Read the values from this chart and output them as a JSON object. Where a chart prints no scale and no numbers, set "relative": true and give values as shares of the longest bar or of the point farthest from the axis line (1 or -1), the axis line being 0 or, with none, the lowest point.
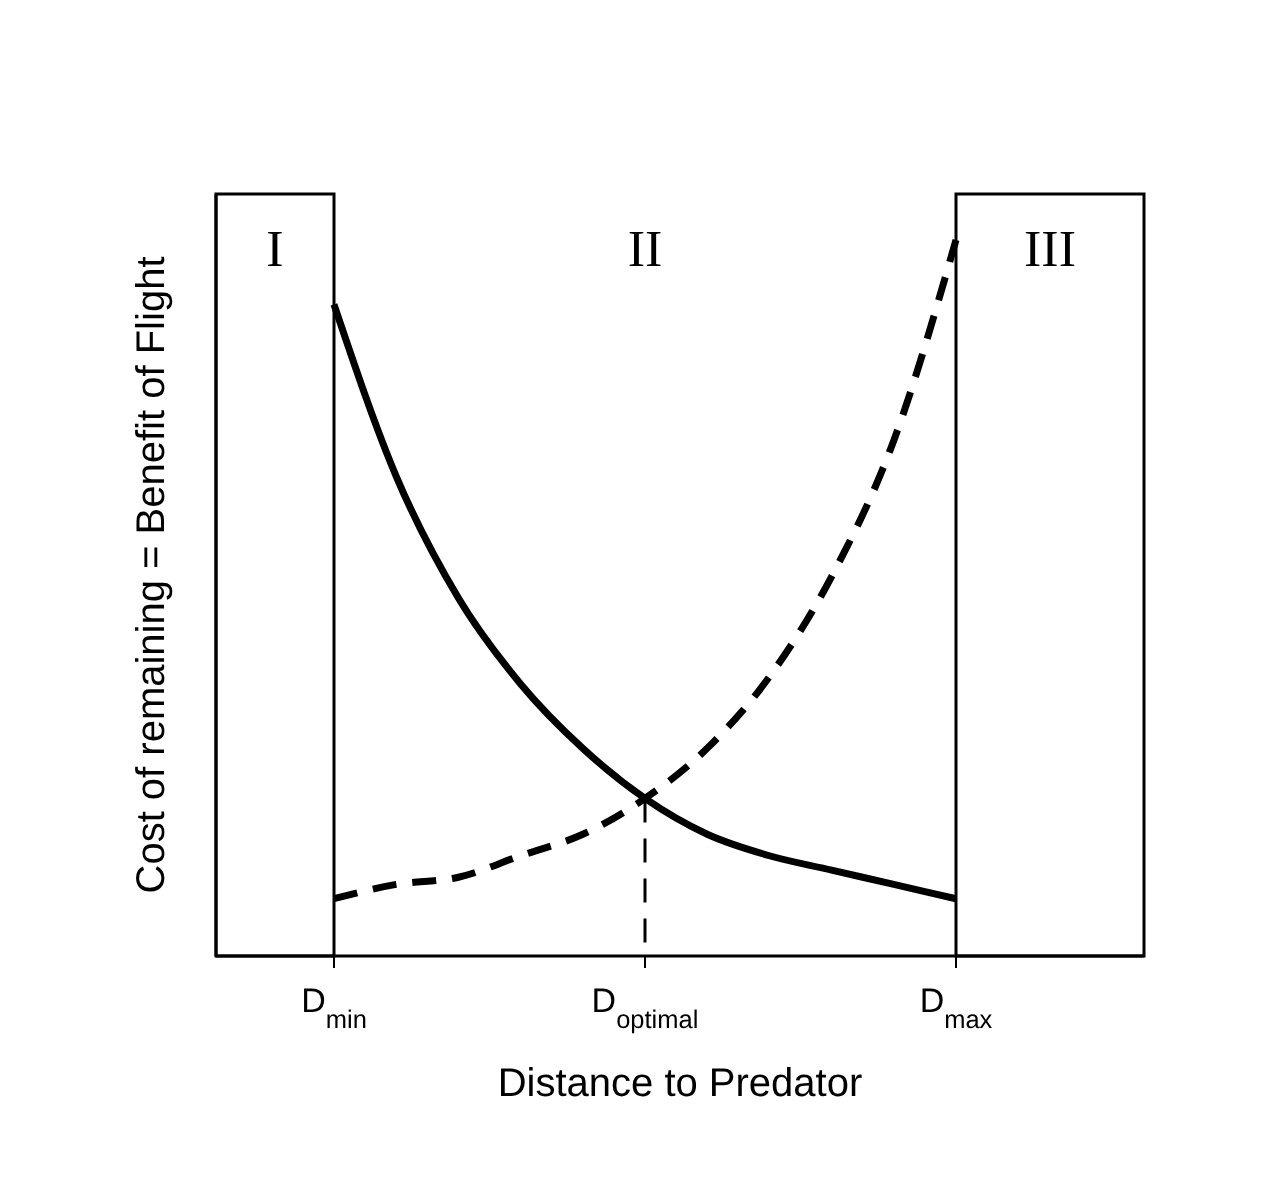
{
  "chart_data": {
    "type": "line",
    "relative": true,
    "xlabel": "Distance to Predator",
    "ylabel": "Cost of remaining = Benefit of Flight",
    "categories": [
      "D$_{min}$",
      null,
      null,
      null,
      null,
      "D$_{optimal}$",
      null,
      null,
      null,
      null,
      "D$_{max}$"
    ],
    "series": [
      {
        "color": "#000000",
        "line_style": "solid",
        "values": [
          0.91,
          0.67,
          0.5,
          0.38,
          0.29,
          0.22,
          0.17,
          0.14,
          0.12,
          0.1,
          0.08
        ]
      },
      {
        "color": "#000000",
        "line_style": "dashed",
        "values": [
          0.08,
          0.1,
          0.11,
          0.14,
          0.17,
          0.22,
          0.29,
          0.39,
          0.53,
          0.72,
          1
        ]
      }
    ],
    "ref_lines": [
      {
        "axis": "x",
        "value": "D$_{optimal}$",
        "line_style": "dashed",
        "color": "#000000"
      }
    ],
    "annotations": [
      "I",
      "II",
      "III"
    ]
  }
}
